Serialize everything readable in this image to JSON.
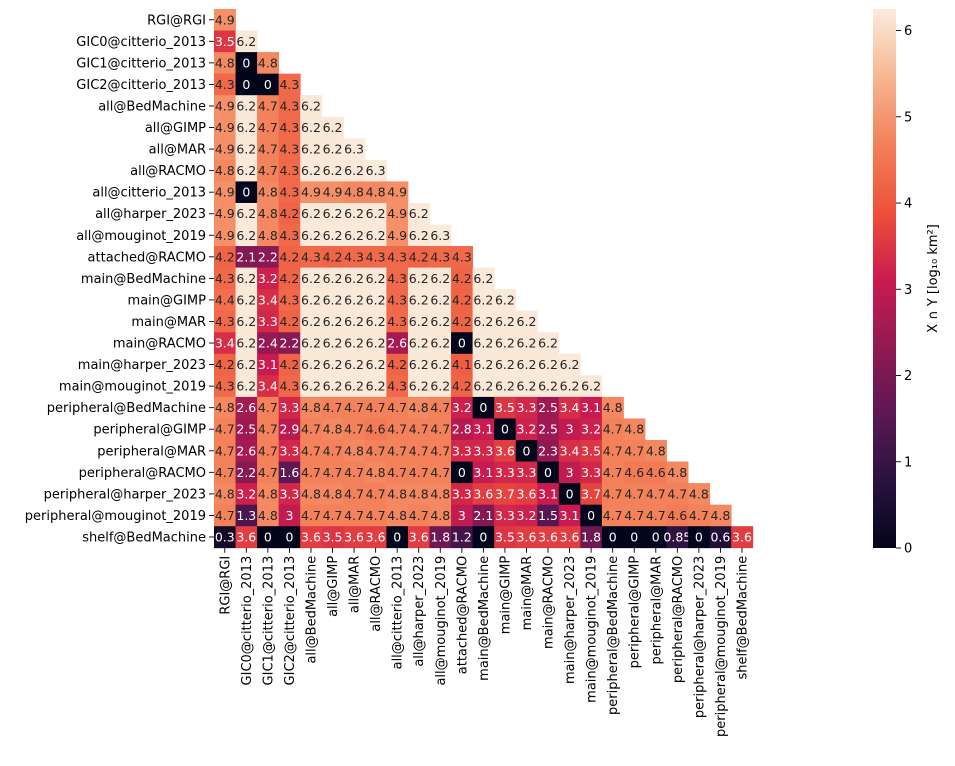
{
  "chart_data": {
    "type": "heatmap",
    "title": "",
    "xlabel": "",
    "ylabel": "",
    "mask": "upper-triangle (cells above diagonal hidden)",
    "colormap": "rocket",
    "vmin": 0,
    "vmax": 6.25,
    "colorbar": {
      "label": "X ∩ Y [log₁₀ km²]",
      "ticks": [
        0,
        1,
        2,
        3,
        4,
        5,
        6
      ],
      "placement": "right"
    },
    "labels": [
      "RGI@RGI",
      "GIC0@citterio_2013",
      "GIC1@citterio_2013",
      "GIC2@citterio_2013",
      "all@BedMachine",
      "all@GIMP",
      "all@MAR",
      "all@RACMO",
      "all@citterio_2013",
      "all@harper_2023",
      "all@mouginot_2019",
      "attached@RACMO",
      "main@BedMachine",
      "main@GIMP",
      "main@MAR",
      "main@RACMO",
      "main@harper_2023",
      "main@mouginot_2019",
      "peripheral@BedMachine",
      "peripheral@GIMP",
      "peripheral@MAR",
      "peripheral@RACMO",
      "peripheral@harper_2023",
      "peripheral@mouginot_2019",
      "shelf@BedMachine"
    ],
    "rows": [
      [
        "4.9"
      ],
      [
        "3.5",
        "6.2"
      ],
      [
        "4.8",
        "0",
        "4.8"
      ],
      [
        "4.3",
        "0",
        "0",
        "4.3"
      ],
      [
        "4.9",
        "6.2",
        "4.7",
        "4.3",
        "6.2"
      ],
      [
        "4.9",
        "6.2",
        "4.7",
        "4.3",
        "6.2",
        "6.2"
      ],
      [
        "4.9",
        "6.2",
        "4.7",
        "4.3",
        "6.2",
        "6.2",
        "6.3"
      ],
      [
        "4.8",
        "6.2",
        "4.7",
        "4.3",
        "6.2",
        "6.2",
        "6.2",
        "6.3"
      ],
      [
        "4.9",
        "0",
        "4.8",
        "4.3",
        "4.9",
        "4.9",
        "4.8",
        "4.8",
        "4.9"
      ],
      [
        "4.9",
        "6.2",
        "4.8",
        "4.2",
        "6.2",
        "6.2",
        "6.2",
        "6.2",
        "4.9",
        "6.2"
      ],
      [
        "4.9",
        "6.2",
        "4.8",
        "4.3",
        "6.2",
        "6.2",
        "6.2",
        "6.2",
        "4.9",
        "6.2",
        "6.3"
      ],
      [
        "4.2",
        "2.1",
        "2.2",
        "4.2",
        "4.3",
        "4.2",
        "4.3",
        "4.3",
        "4.3",
        "4.2",
        "4.3",
        "4.3"
      ],
      [
        "4.3",
        "6.2",
        "3.2",
        "4.2",
        "6.2",
        "6.2",
        "6.2",
        "6.2",
        "4.3",
        "6.2",
        "6.2",
        "4.2",
        "6.2"
      ],
      [
        "4.4",
        "6.2",
        "3.4",
        "4.3",
        "6.2",
        "6.2",
        "6.2",
        "6.2",
        "4.3",
        "6.2",
        "6.2",
        "4.2",
        "6.2",
        "6.2"
      ],
      [
        "4.3",
        "6.2",
        "3.3",
        "4.2",
        "6.2",
        "6.2",
        "6.2",
        "6.2",
        "4.3",
        "6.2",
        "6.2",
        "4.2",
        "6.2",
        "6.2",
        "6.2"
      ],
      [
        "3.4",
        "6.2",
        "2.4",
        "2.2",
        "6.2",
        "6.2",
        "6.2",
        "6.2",
        "2.6",
        "6.2",
        "6.2",
        "0",
        "6.2",
        "6.2",
        "6.2",
        "6.2"
      ],
      [
        "4.2",
        "6.2",
        "3.1",
        "4.2",
        "6.2",
        "6.2",
        "6.2",
        "6.2",
        "4.2",
        "6.2",
        "6.2",
        "4.1",
        "6.2",
        "6.2",
        "6.2",
        "6.2",
        "6.2"
      ],
      [
        "4.3",
        "6.2",
        "3.4",
        "4.3",
        "6.2",
        "6.2",
        "6.2",
        "6.2",
        "4.3",
        "6.2",
        "6.2",
        "4.2",
        "6.2",
        "6.2",
        "6.2",
        "6.2",
        "6.2",
        "6.2"
      ],
      [
        "4.8",
        "2.6",
        "4.7",
        "3.3",
        "4.8",
        "4.7",
        "4.7",
        "4.7",
        "4.7",
        "4.8",
        "4.7",
        "3.2",
        "0",
        "3.5",
        "3.3",
        "2.5",
        "3.4",
        "3.1",
        "4.8"
      ],
      [
        "4.7",
        "2.5",
        "4.7",
        "2.9",
        "4.7",
        "4.8",
        "4.7",
        "4.6",
        "4.7",
        "4.7",
        "4.7",
        "2.8",
        "3.1",
        "0",
        "3.2",
        "2.5",
        "3",
        "3.2",
        "4.7",
        "4.8"
      ],
      [
        "4.7",
        "2.6",
        "4.7",
        "3.3",
        "4.7",
        "4.7",
        "4.8",
        "4.7",
        "4.7",
        "4.7",
        "4.7",
        "3.3",
        "3.3",
        "3.6",
        "0",
        "2.3",
        "3.4",
        "3.5",
        "4.7",
        "4.7",
        "4.8"
      ],
      [
        "4.7",
        "2.2",
        "4.7",
        "1.6",
        "4.7",
        "4.7",
        "4.7",
        "4.8",
        "4.7",
        "4.7",
        "4.7",
        "0",
        "3.1",
        "3.3",
        "3.3",
        "0",
        "3",
        "3.3",
        "4.7",
        "4.6",
        "4.6",
        "4.8"
      ],
      [
        "4.8",
        "3.2",
        "4.8",
        "3.3",
        "4.8",
        "4.8",
        "4.7",
        "4.7",
        "4.8",
        "4.8",
        "4.8",
        "3.3",
        "3.6",
        "3.7",
        "3.6",
        "3.1",
        "0",
        "3.7",
        "4.7",
        "4.7",
        "4.7",
        "4.7",
        "4.8"
      ],
      [
        "4.7",
        "1.3",
        "4.8",
        "3",
        "4.7",
        "4.7",
        "4.7",
        "4.7",
        "4.8",
        "4.7",
        "4.8",
        "3",
        "2.1",
        "3.3",
        "3.2",
        "1.5",
        "3.1",
        "0",
        "4.7",
        "4.7",
        "4.7",
        "4.6",
        "4.7",
        "4.8"
      ],
      [
        "0.3",
        "3.6",
        "0",
        "0",
        "3.6",
        "3.5",
        "3.6",
        "3.6",
        "0",
        "3.6",
        "1.8",
        "1.2",
        "0",
        "3.5",
        "3.6",
        "3.6",
        "3.6",
        "1.8",
        "0",
        "0",
        "0",
        "0.85",
        "0",
        "0.6",
        "3.6"
      ]
    ]
  }
}
